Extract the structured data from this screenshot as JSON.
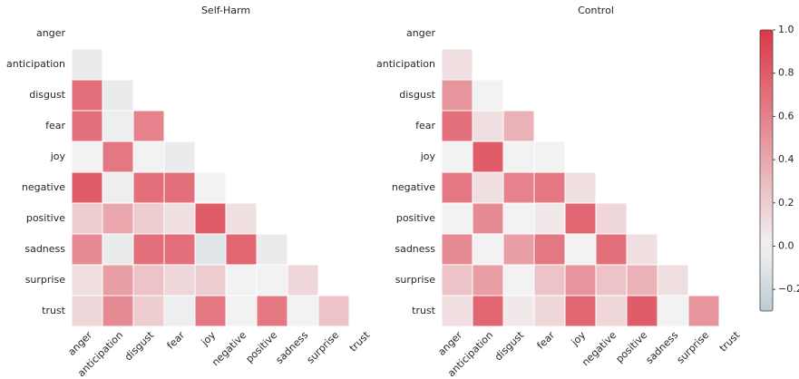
{
  "chart_data": [
    {
      "type": "heatmap",
      "title": "Self-Harm",
      "categories": [
        "anger",
        "anticipation",
        "disgust",
        "fear",
        "joy",
        "negative",
        "positive",
        "sadness",
        "surprise",
        "trust"
      ],
      "values": [
        [],
        [
          -0.05
        ],
        [
          0.7,
          -0.05
        ],
        [
          0.7,
          -0.03,
          0.6
        ],
        [
          0.0,
          0.65,
          0.0,
          -0.05
        ],
        [
          0.8,
          -0.03,
          0.7,
          0.7,
          0.0
        ],
        [
          0.2,
          0.4,
          0.2,
          0.1,
          0.8,
          0.1
        ],
        [
          0.55,
          -0.05,
          0.7,
          0.7,
          -0.1,
          0.75,
          -0.05
        ],
        [
          0.1,
          0.45,
          0.25,
          0.15,
          0.2,
          0.0,
          0.0,
          0.15
        ],
        [
          0.15,
          0.55,
          0.2,
          -0.03,
          0.65,
          0.0,
          0.65,
          0.0,
          0.25
        ]
      ]
    },
    {
      "type": "heatmap",
      "title": "Control",
      "categories": [
        "anger",
        "anticipation",
        "disgust",
        "fear",
        "joy",
        "negative",
        "positive",
        "sadness",
        "surprise",
        "trust"
      ],
      "values": [
        [],
        [
          0.1
        ],
        [
          0.5,
          0.0
        ],
        [
          0.7,
          0.1,
          0.35
        ],
        [
          0.0,
          0.8,
          0.0,
          0.0
        ],
        [
          0.65,
          0.1,
          0.6,
          0.65,
          0.1
        ],
        [
          0.0,
          0.55,
          0.0,
          0.05,
          0.75,
          0.15
        ],
        [
          0.55,
          0.0,
          0.45,
          0.65,
          0.0,
          0.7,
          0.1
        ],
        [
          0.25,
          0.45,
          0.0,
          0.25,
          0.5,
          0.25,
          0.35,
          0.1
        ],
        [
          0.1,
          0.75,
          0.05,
          0.15,
          0.75,
          0.15,
          0.8,
          0.0,
          0.5
        ]
      ],
      "clim": [
        -0.3,
        1.0
      ],
      "cticks": [
        {
          "value": 1.0,
          "label": "1.0"
        },
        {
          "value": 0.8,
          "label": "0.8"
        },
        {
          "value": 0.6,
          "label": "0.6"
        },
        {
          "value": 0.4,
          "label": "0.4"
        },
        {
          "value": 0.2,
          "label": "0.2"
        },
        {
          "value": 0.0,
          "label": "0.0"
        },
        {
          "value": -0.2,
          "label": "−0.2"
        }
      ]
    }
  ]
}
